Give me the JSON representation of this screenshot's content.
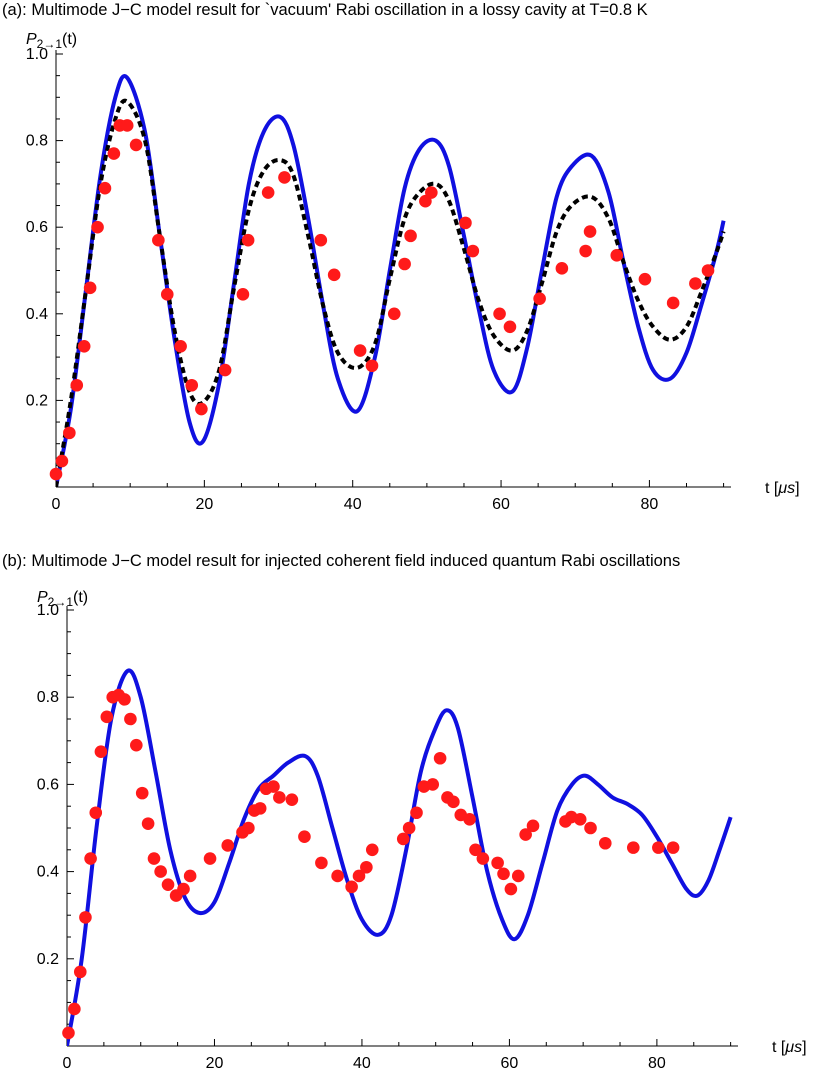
{
  "chart_data": [
    {
      "type": "line",
      "title": "(a): Multimode J−C model result for `vacuum' Rabi oscillation in a lossy cavity at T=0.8 K",
      "ylabel": "P",
      "ylabel_sub": "2→1",
      "ylabel_suffix": "(t)",
      "xlabel": "t [",
      "xlabel_unit": "μs",
      "xlabel_suffix": "]",
      "xlim": [
        0,
        91
      ],
      "ylim": [
        0,
        1.0
      ],
      "xticks": [
        0,
        20,
        40,
        60,
        80
      ],
      "yticks": [
        0.2,
        0.4,
        0.6,
        0.8,
        1.0
      ],
      "xtick_labels": [
        "0",
        "20",
        "40",
        "60",
        "80"
      ],
      "ytick_labels": [
        "0.2",
        "0.4",
        "0.6",
        "0.8",
        "1.0"
      ],
      "grid": false,
      "series": [
        {
          "style": "solid",
          "color": "#1010e0",
          "x": [
            0,
            2,
            4,
            6,
            8,
            9.6,
            12,
            14,
            16,
            18,
            19.8,
            22,
            24,
            26,
            28,
            30.2,
            32,
            34,
            36,
            38,
            40.6,
            43,
            45,
            47,
            49,
            51.2,
            53,
            55,
            57,
            59,
            61.5,
            63.5,
            65.5,
            67.5,
            69.5,
            72.2,
            74.5,
            76.5,
            78.5,
            80.5,
            82.8,
            85,
            87,
            89,
            90
          ],
          "y": [
            0,
            0.18,
            0.45,
            0.72,
            0.9,
            0.945,
            0.82,
            0.58,
            0.34,
            0.15,
            0.105,
            0.24,
            0.47,
            0.7,
            0.82,
            0.855,
            0.79,
            0.62,
            0.42,
            0.25,
            0.175,
            0.3,
            0.5,
            0.69,
            0.78,
            0.8,
            0.74,
            0.58,
            0.41,
            0.27,
            0.22,
            0.32,
            0.5,
            0.67,
            0.74,
            0.765,
            0.68,
            0.52,
            0.37,
            0.27,
            0.25,
            0.31,
            0.42,
            0.54,
            0.615
          ]
        },
        {
          "style": "dashed",
          "color": "#000000",
          "x": [
            0,
            2,
            4,
            6,
            8,
            9.6,
            12,
            14,
            16,
            18,
            19.8,
            22,
            24,
            26,
            28,
            30.2,
            32,
            34,
            36,
            38,
            40.6,
            43,
            45,
            47,
            49,
            51.2,
            53,
            55,
            57,
            59,
            61.5,
            63.5,
            65.5,
            67.5,
            69.5,
            72.2,
            74.5,
            76.5,
            78.5,
            80.5,
            82.8,
            85,
            87,
            89,
            90
          ],
          "y": [
            0,
            0.2,
            0.45,
            0.7,
            0.85,
            0.89,
            0.8,
            0.58,
            0.36,
            0.22,
            0.195,
            0.27,
            0.46,
            0.64,
            0.73,
            0.755,
            0.72,
            0.58,
            0.42,
            0.31,
            0.275,
            0.33,
            0.48,
            0.62,
            0.68,
            0.7,
            0.66,
            0.55,
            0.43,
            0.35,
            0.315,
            0.36,
            0.47,
            0.59,
            0.65,
            0.67,
            0.62,
            0.52,
            0.43,
            0.37,
            0.34,
            0.37,
            0.45,
            0.54,
            0.59
          ]
        },
        {
          "style": "points",
          "color": "#ff1a1a",
          "x": [
            0,
            0.8,
            1.8,
            2.8,
            3.8,
            4.6,
            5.6,
            6.6,
            7.8,
            8.6,
            9.6,
            10.8,
            13.8,
            15.0,
            16.8,
            18.3,
            19.6,
            22.8,
            25.2,
            25.9,
            28.6,
            30.8,
            35.7,
            37.5,
            41.0,
            42.6,
            45.6,
            47.0,
            47.8,
            49.8,
            50.6,
            55.2,
            56.2,
            59.8,
            61.2,
            65.2,
            68.2,
            71.4,
            72.0,
            75.6,
            79.4,
            83.2,
            86.2,
            87.9
          ],
          "y": [
            0.03,
            0.06,
            0.125,
            0.235,
            0.325,
            0.46,
            0.6,
            0.69,
            0.77,
            0.835,
            0.835,
            0.79,
            0.57,
            0.445,
            0.325,
            0.235,
            0.18,
            0.27,
            0.445,
            0.57,
            0.68,
            0.715,
            0.57,
            0.49,
            0.315,
            0.28,
            0.4,
            0.515,
            0.58,
            0.66,
            0.68,
            0.61,
            0.545,
            0.4,
            0.37,
            0.435,
            0.505,
            0.545,
            0.59,
            0.535,
            0.48,
            0.425,
            0.47,
            0.5
          ]
        }
      ]
    },
    {
      "type": "line",
      "title": "(b): Multimode J−C model result for injected coherent field induced quantum Rabi oscillations",
      "ylabel": "P",
      "ylabel_sub": "2→1",
      "ylabel_suffix": "(t)",
      "xlabel": "t [",
      "xlabel_unit": "μs",
      "xlabel_suffix": "]",
      "xlim": [
        0,
        91
      ],
      "ylim": [
        0,
        1.0
      ],
      "xticks": [
        0,
        20,
        40,
        60,
        80
      ],
      "yticks": [
        0.2,
        0.4,
        0.6,
        0.8,
        1.0
      ],
      "xtick_labels": [
        "0",
        "20",
        "40",
        "60",
        "80"
      ],
      "ytick_labels": [
        "0.2",
        "0.4",
        "0.6",
        "0.8",
        "1.0"
      ],
      "grid": false,
      "series": [
        {
          "style": "solid",
          "color": "#1010e0",
          "x": [
            0,
            2,
            4,
            6,
            8.2,
            10,
            12,
            14,
            16,
            18,
            20,
            22,
            24,
            26,
            28,
            30,
            32.3,
            34,
            36,
            38,
            40,
            42.2,
            44,
            46,
            48,
            50,
            51.5,
            53,
            55,
            57,
            59,
            60.7,
            62.5,
            64.5,
            66.5,
            68.5,
            70.2,
            72,
            74,
            76,
            78,
            80,
            82,
            84,
            85.5,
            87,
            88.5,
            90
          ],
          "y": [
            0,
            0.2,
            0.5,
            0.75,
            0.86,
            0.8,
            0.63,
            0.45,
            0.34,
            0.305,
            0.33,
            0.42,
            0.52,
            0.59,
            0.62,
            0.65,
            0.665,
            0.62,
            0.5,
            0.38,
            0.29,
            0.255,
            0.3,
            0.45,
            0.63,
            0.73,
            0.77,
            0.73,
            0.57,
            0.4,
            0.29,
            0.245,
            0.3,
            0.42,
            0.54,
            0.6,
            0.62,
            0.6,
            0.57,
            0.555,
            0.53,
            0.48,
            0.42,
            0.36,
            0.345,
            0.38,
            0.45,
            0.525
          ]
        },
        {
          "style": "points",
          "color": "#ff1a1a",
          "x": [
            0.2,
            1.0,
            1.8,
            2.5,
            3.2,
            3.9,
            4.6,
            5.4,
            6.2,
            7.0,
            7.8,
            8.6,
            9.4,
            10.2,
            11.0,
            11.8,
            12.7,
            13.7,
            14.8,
            15.8,
            16.7,
            19.4,
            21.8,
            23.8,
            24.6,
            25.4,
            26.2,
            27.0,
            28.0,
            28.8,
            30.5,
            32.2,
            34.5,
            36.7,
            38.6,
            39.6,
            40.6,
            41.4,
            45.6,
            46.4,
            47.4,
            48.4,
            49.6,
            50.6,
            51.6,
            52.4,
            53.4,
            54.6,
            55.4,
            56.4,
            58.4,
            59.2,
            60.2,
            61.2,
            62.2,
            63.2,
            67.6,
            68.4,
            69.6,
            71.0,
            73.0,
            76.8,
            80.2,
            82.2
          ],
          "y": [
            0.03,
            0.085,
            0.17,
            0.295,
            0.43,
            0.535,
            0.675,
            0.755,
            0.8,
            0.805,
            0.795,
            0.75,
            0.69,
            0.58,
            0.51,
            0.43,
            0.4,
            0.37,
            0.345,
            0.36,
            0.39,
            0.43,
            0.46,
            0.49,
            0.5,
            0.54,
            0.545,
            0.59,
            0.595,
            0.57,
            0.565,
            0.48,
            0.42,
            0.39,
            0.365,
            0.39,
            0.41,
            0.45,
            0.475,
            0.5,
            0.535,
            0.595,
            0.6,
            0.66,
            0.57,
            0.56,
            0.53,
            0.52,
            0.45,
            0.43,
            0.42,
            0.395,
            0.36,
            0.39,
            0.485,
            0.505,
            0.515,
            0.525,
            0.52,
            0.5,
            0.465,
            0.455,
            0.455,
            0.455
          ]
        }
      ]
    }
  ]
}
